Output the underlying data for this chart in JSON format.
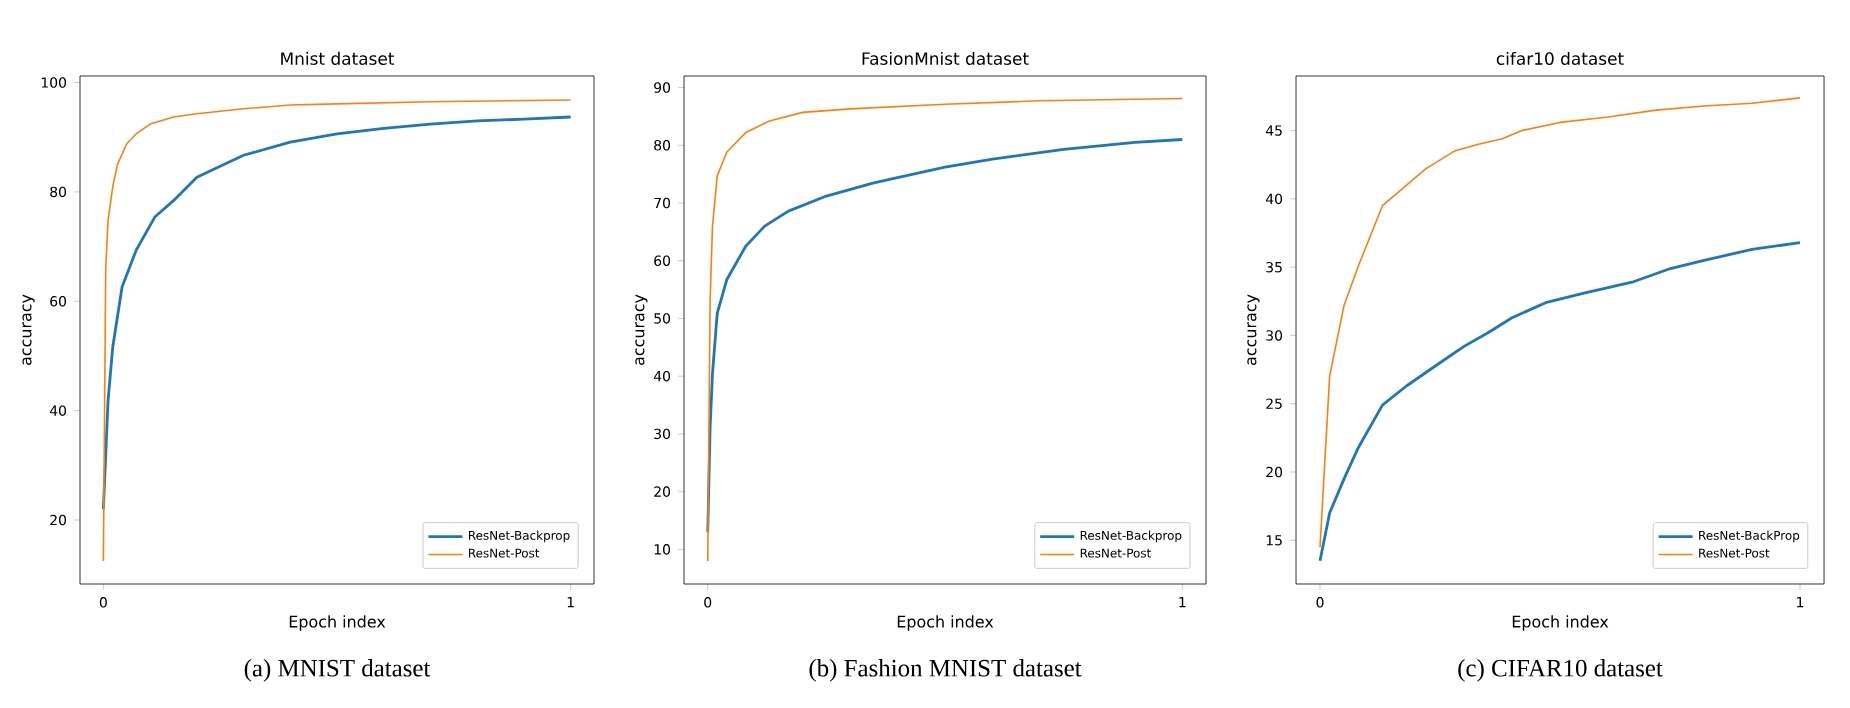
{
  "chart_data": [
    {
      "type": "line",
      "title": "Mnist dataset",
      "xlabel": "Epoch index",
      "ylabel": "accuracy",
      "annotations": [
        "(a) MNIST dataset"
      ],
      "xlim": [
        -0.05,
        1.05
      ],
      "ylim": [
        8.3,
        101.2
      ],
      "xticks": [
        0,
        1
      ],
      "yticks": [
        20,
        40,
        60,
        80,
        100
      ],
      "legend": "bottom right",
      "grid": false,
      "series": [
        {
          "name": "ResNet-Backprop",
          "color": "#1f77b4",
          "x": [
            0,
            0.01,
            0.02,
            0.04,
            0.07,
            0.11,
            0.15,
            0.2,
            0.3,
            0.4,
            0.5,
            0.6,
            0.7,
            0.8,
            0.9,
            1
          ],
          "values": [
            22,
            41.8,
            51.6,
            62.6,
            69.3,
            75.4,
            78.4,
            82.7,
            86.7,
            89.1,
            90.6,
            91.6,
            92.4,
            93.0,
            93.3,
            93.7
          ]
        },
        {
          "name": "ResNet-Post",
          "color": "#ff7f0e",
          "x": [
            0,
            0.005,
            0.01,
            0.02,
            0.03,
            0.05,
            0.07,
            0.1,
            0.15,
            0.2,
            0.3,
            0.4,
            0.5,
            0.7,
            1
          ],
          "values": [
            12.5,
            66,
            74.8,
            80.9,
            85,
            88.8,
            90.6,
            92.4,
            93.7,
            94.3,
            95.2,
            95.9,
            96.1,
            96.5,
            96.8
          ]
        }
      ]
    },
    {
      "type": "line",
      "title": "FasionMnist dataset",
      "xlabel": "Epoch index",
      "ylabel": "accuracy",
      "annotations": [
        "(b) Fashion MNIST dataset"
      ],
      "xlim": [
        -0.05,
        1.05
      ],
      "ylim": [
        4,
        92
      ],
      "xticks": [
        0,
        1
      ],
      "yticks": [
        10,
        20,
        30,
        40,
        50,
        60,
        70,
        80,
        90
      ],
      "legend": "bottom right",
      "grid": false,
      "series": [
        {
          "name": "ResNet-Backprop",
          "color": "#1f77b4",
          "x": [
            0,
            0.005,
            0.01,
            0.02,
            0.04,
            0.08,
            0.12,
            0.17,
            0.25,
            0.35,
            0.5,
            0.6,
            0.75,
            0.9,
            1
          ],
          "values": [
            13,
            31.2,
            40.5,
            50.9,
            56.7,
            62.5,
            66,
            68.6,
            71.2,
            73.5,
            76.2,
            77.6,
            79.3,
            80.5,
            81
          ]
        },
        {
          "name": "ResNet-Post",
          "color": "#ff7f0e",
          "x": [
            0,
            0.005,
            0.01,
            0.02,
            0.04,
            0.08,
            0.13,
            0.2,
            0.3,
            0.5,
            0.7,
            1
          ],
          "values": [
            8,
            53.2,
            66,
            74.7,
            78.8,
            82.2,
            84.2,
            85.7,
            86.3,
            87.1,
            87.7,
            88.1
          ]
        }
      ]
    },
    {
      "type": "line",
      "title": "cifar10 dataset",
      "xlabel": "Epoch index",
      "ylabel": "accuracy",
      "annotations": [
        "(c) CIFAR10 dataset"
      ],
      "xlim": [
        -0.05,
        1.05
      ],
      "ylim": [
        11.8,
        49
      ],
      "xticks": [
        0,
        1
      ],
      "yticks": [
        15,
        20,
        25,
        30,
        35,
        40,
        45
      ],
      "legend": "bottom right",
      "grid": false,
      "series": [
        {
          "name": "ResNet-BackProp",
          "color": "#1f77b4",
          "x": [
            0,
            0.02,
            0.05,
            0.08,
            0.13,
            0.18,
            0.25,
            0.3,
            0.35,
            0.4,
            0.47,
            0.55,
            0.65,
            0.73,
            0.8,
            0.9,
            1
          ],
          "values": [
            13.5,
            17,
            19.5,
            21.8,
            24.9,
            26.3,
            28,
            29.2,
            30.2,
            31.3,
            32.4,
            33.1,
            33.9,
            34.9,
            35.5,
            36.3,
            36.8
          ]
        },
        {
          "name": "ResNet-Post",
          "color": "#ff7f0e",
          "x": [
            0,
            0.02,
            0.05,
            0.08,
            0.13,
            0.17,
            0.22,
            0.28,
            0.33,
            0.38,
            0.42,
            0.5,
            0.6,
            0.7,
            0.8,
            0.9,
            1
          ],
          "values": [
            14.5,
            27,
            32.2,
            35.1,
            39.5,
            40.7,
            42.2,
            43.5,
            44,
            44.4,
            45,
            45.6,
            46,
            46.5,
            46.8,
            47,
            47.4
          ]
        }
      ]
    }
  ]
}
